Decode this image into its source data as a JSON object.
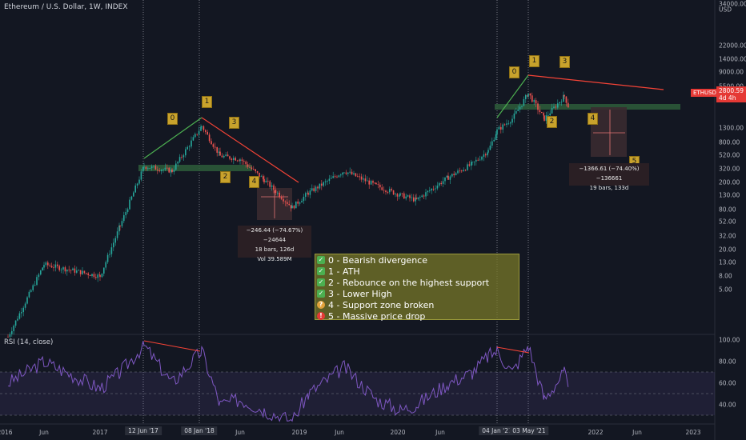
{
  "header": {
    "title": "Ethereum / U.S. Dollar, 1W, INDEX"
  },
  "rsi": {
    "label": "RSI (14, close)"
  },
  "price_axis": {
    "unit": "USD",
    "ticks": [
      "34000.00",
      "22000.00",
      "14000.00",
      "9000.00",
      "5500.00",
      "3500.00",
      "1300.00",
      "800.00",
      "520.00",
      "320.00",
      "200.00",
      "130.00",
      "80.00",
      "52.00",
      "32.00",
      "20.00",
      "13.00",
      "8.00",
      "5.00"
    ],
    "top_label": "34000.00"
  },
  "rsi_axis": {
    "ticks": [
      "100.00",
      "80.00",
      "60.00",
      "40.00"
    ]
  },
  "current_price": {
    "symbol": "ETHUSD",
    "price": "2800.59",
    "countdown": "4d 4h"
  },
  "time_axis": {
    "labels": [
      "2016",
      "Jun",
      "2017",
      "Jun",
      "Jun",
      "2019",
      "Jun",
      "2020",
      "Jun",
      "Jun",
      "2022",
      "Jun",
      "2023"
    ],
    "highlighted": [
      "12 Jun '17",
      "08 Jan '18",
      "04 Jan '21",
      "03 May '21"
    ]
  },
  "annotations": {
    "tags_2018": [
      "0",
      "1",
      "3",
      "2",
      "4",
      "5"
    ],
    "tags_2021": [
      "0",
      "1",
      "3",
      "2",
      "4",
      "5"
    ]
  },
  "measure_2018": {
    "line1": "−246.44 (−74.67%) −24644",
    "line2": "18 bars, 126d",
    "line3": "Vol 39.589M"
  },
  "measure_2021": {
    "line1": "−1366.61 (−74.40%) −136661",
    "line2": "19 bars, 133d"
  },
  "legend": {
    "items": [
      {
        "icon": "check-icon",
        "text": "0 - Bearish divergence"
      },
      {
        "icon": "check-icon",
        "text": "1 - ATH"
      },
      {
        "icon": "check-icon",
        "text": "2 - Rebounce on the highest support"
      },
      {
        "icon": "check-icon",
        "text": "3 - Lower High"
      },
      {
        "icon": "question-icon",
        "text": "4 - Support zone broken"
      },
      {
        "icon": "exclamation-icon",
        "text": "5 - Massive price drop"
      }
    ]
  },
  "colors": {
    "background": "#131722",
    "up": "#26a69a",
    "down": "#ef5350",
    "trend_up": "#4caf50",
    "trend_down": "#f44336",
    "support_zone": "#2e5d3a",
    "rsi_line": "#7e57c2",
    "tag": "#c8a22c"
  },
  "chart_data": {
    "type": "line",
    "title": "Ethereum / U.S. Dollar, 1W, INDEX",
    "scale": "log",
    "x": [
      "2016-01",
      "2016-06",
      "2017-01",
      "2017-03",
      "2017-06",
      "2017-09",
      "2018-01",
      "2018-04",
      "2018-06",
      "2018-09",
      "2018-12",
      "2019-03",
      "2019-06",
      "2019-09",
      "2019-12",
      "2020-03",
      "2020-06",
      "2020-09",
      "2020-12",
      "2021-01",
      "2021-03",
      "2021-05",
      "2021-07",
      "2021-09",
      "2021-11"
    ],
    "series": [
      {
        "values": [
          1,
          12,
          8,
          45,
          350,
          300,
          1400,
          500,
          450,
          220,
          85,
          140,
          300,
          180,
          130,
          110,
          240,
          380,
          600,
          1200,
          1800,
          4300,
          1800,
          3900,
          2800
        ]
      }
    ],
    "rsi": [
      60,
      80,
      55,
      70,
      95,
      60,
      90,
      40,
      45,
      35,
      25,
      50,
      75,
      45,
      35,
      40,
      60,
      70,
      85,
      90,
      70,
      95,
      45,
      70,
      52
    ],
    "ylim": [
      3.5,
      34000
    ]
  }
}
